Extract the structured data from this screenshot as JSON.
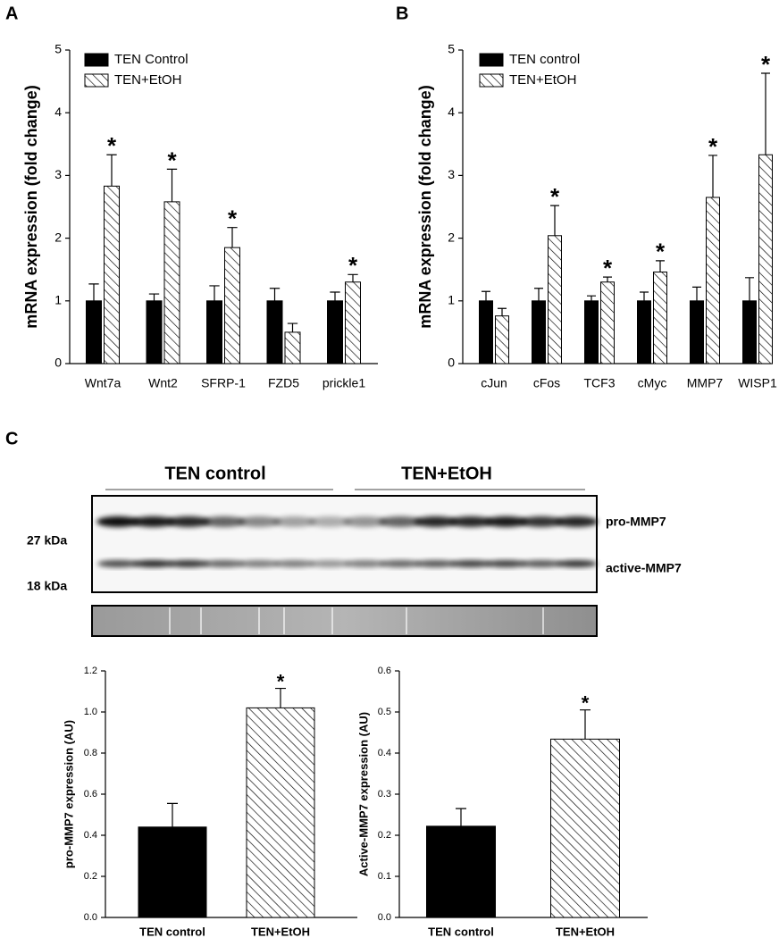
{
  "chart_data": [
    {
      "type": "bar",
      "panel": "A",
      "ylabel": "mRNA expression (fold change)",
      "categories": [
        "Wnt7a",
        "Wnt2",
        "SFRP-1",
        "FZD5",
        "prickle1"
      ],
      "series": [
        {
          "name": "TEN Control",
          "color": "#000000",
          "hatch": false,
          "values": [
            1,
            1,
            1,
            1,
            1
          ],
          "errors": [
            0.27,
            0.11,
            0.24,
            0.2,
            0.14
          ]
        },
        {
          "name": "TEN+EtOH",
          "color": "#ffffff",
          "hatch": true,
          "values": [
            2.83,
            2.58,
            1.85,
            0.5,
            1.3
          ],
          "errors": [
            0.5,
            0.52,
            0.32,
            0.14,
            0.12
          ],
          "significance": [
            "*",
            "*",
            "*",
            null,
            "*"
          ]
        }
      ],
      "ylim": [
        0,
        5
      ],
      "yticks": [
        0,
        1,
        2,
        3,
        4,
        5
      ],
      "legend": "upper left"
    },
    {
      "type": "bar",
      "panel": "B",
      "ylabel": "mRNA expression (fold change)",
      "categories": [
        "cJun",
        "cFos",
        "TCF3",
        "cMyc",
        "MMP7",
        "WISP1"
      ],
      "series": [
        {
          "name": "TEN control",
          "color": "#000000",
          "hatch": false,
          "values": [
            1,
            1,
            1,
            1,
            1,
            1
          ],
          "errors": [
            0.15,
            0.2,
            0.08,
            0.14,
            0.22,
            0.37
          ]
        },
        {
          "name": "TEN+EtOH",
          "color": "#ffffff",
          "hatch": true,
          "values": [
            0.76,
            2.04,
            1.3,
            1.46,
            2.65,
            3.33
          ],
          "errors": [
            0.12,
            0.48,
            0.08,
            0.18,
            0.67,
            1.3
          ],
          "significance": [
            null,
            "*",
            "*",
            "*",
            "*",
            "*"
          ]
        }
      ],
      "ylim": [
        0,
        5
      ],
      "yticks": [
        0,
        1,
        2,
        3,
        4,
        5
      ],
      "legend": "upper left"
    },
    {
      "type": "bar",
      "ylabel": "pro-MMP7 expression (AU)",
      "categories": [
        "TEN control",
        "TEN+EtOH"
      ],
      "values": [
        0.44,
        1.02
      ],
      "errors": [
        0.115,
        0.095
      ],
      "colors": [
        "#000000",
        "#ffffff"
      ],
      "hatch": [
        false,
        true
      ],
      "significance": [
        null,
        "*"
      ],
      "ylim": [
        0,
        1.2
      ],
      "yticks": [
        {
          "value": 0,
          "label": "0.0"
        },
        0.2,
        0.4,
        0.6,
        0.8,
        {
          "value": 1,
          "label": "1.0"
        },
        1.2
      ]
    },
    {
      "type": "bar",
      "ylabel": "Active-MMP7 expression (AU)",
      "categories": [
        "TEN control",
        "TEN+EtOH"
      ],
      "values": [
        0.222,
        0.434
      ],
      "errors": [
        0.043,
        0.071
      ],
      "colors": [
        "#000000",
        "#ffffff"
      ],
      "hatch": [
        false,
        true
      ],
      "significance": [
        null,
        "*"
      ],
      "ylim": [
        0,
        0.6
      ],
      "yticks": [
        {
          "value": 0,
          "label": "0.0"
        },
        0.1,
        0.2,
        0.3,
        0.4,
        0.5,
        0.6
      ]
    }
  ],
  "blot": {
    "panel": "C",
    "groups": [
      "TEN control",
      "TEN+EtOH"
    ],
    "markers": [
      "27 kDa",
      "18 kDa"
    ],
    "bands": [
      "pro-MMP7",
      "active-MMP7"
    ]
  }
}
